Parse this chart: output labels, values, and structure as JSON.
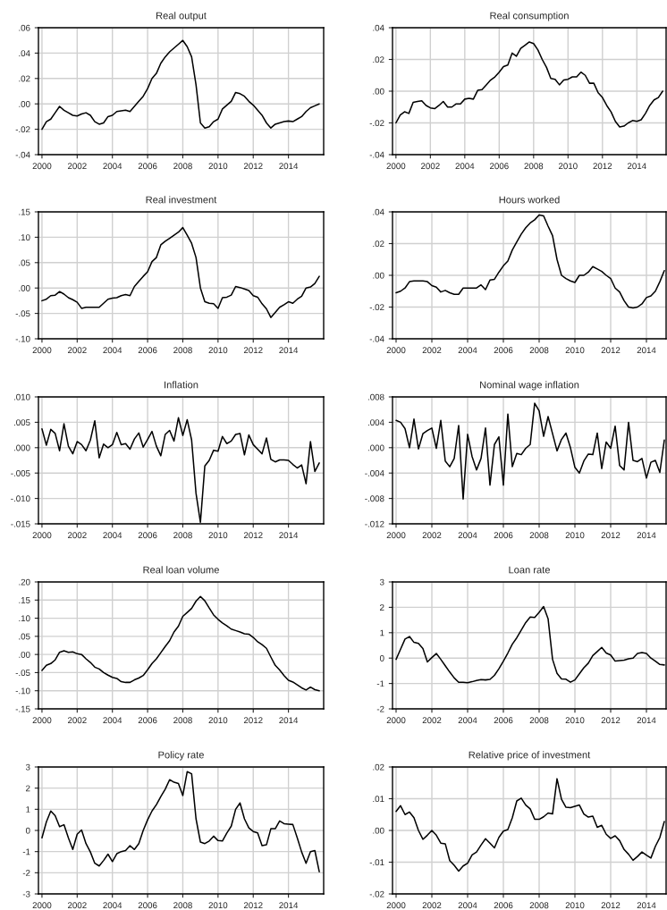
{
  "chart_data": [
    {
      "type": "line",
      "title": "Real output",
      "grid": true,
      "xlim": [
        1999.8,
        2016
      ],
      "xticks": [
        2000,
        2002,
        2004,
        2006,
        2008,
        2010,
        2012,
        2014
      ],
      "ylim": [
        -0.04,
        0.06
      ],
      "yticks": [
        {
          "value": -0.04,
          "label": "-.04"
        },
        {
          "value": -0.02,
          "label": "-.02"
        },
        {
          "value": 0,
          "label": ".00"
        },
        {
          "value": 0.02,
          "label": ".02"
        },
        {
          "value": 0.04,
          "label": ".04"
        },
        {
          "value": 0.06,
          "label": ".06"
        }
      ],
      "x": [
        2000,
        2000.25,
        2000.5,
        2000.75,
        2001,
        2001.25,
        2001.5,
        2001.75,
        2002,
        2002.25,
        2002.5,
        2002.75,
        2003,
        2003.25,
        2003.5,
        2003.75,
        2004,
        2004.25,
        2004.5,
        2004.75,
        2005,
        2005.25,
        2005.5,
        2005.75,
        2006,
        2006.25,
        2006.5,
        2006.75,
        2007,
        2007.25,
        2007.5,
        2007.75,
        2008,
        2008.25,
        2008.5,
        2008.75,
        2009,
        2009.25,
        2009.5,
        2009.75,
        2010,
        2010.25,
        2010.5,
        2010.75,
        2011,
        2011.25,
        2011.5,
        2011.75,
        2012,
        2012.25,
        2012.5,
        2012.75,
        2013,
        2013.25,
        2013.5,
        2013.75,
        2014,
        2014.25,
        2014.5,
        2014.75,
        2015,
        2015.25,
        2015.5,
        2015.75
      ],
      "series": [
        {
          "color": "#000000",
          "values": [
            -0.02,
            -0.014,
            -0.012,
            -0.007,
            -0.002,
            -0.005,
            -0.007,
            -0.009,
            -0.0095,
            -0.008,
            -0.007,
            -0.009,
            -0.014,
            -0.016,
            -0.015,
            -0.01,
            -0.009,
            -0.006,
            -0.0055,
            -0.005,
            -0.006,
            -0.002,
            0.002,
            0.006,
            0.012,
            0.02,
            0.024,
            0.032,
            0.037,
            0.041,
            0.044,
            0.047,
            0.05,
            0.045,
            0.037,
            0.015,
            -0.015,
            -0.019,
            -0.018,
            -0.014,
            -0.012,
            -0.004,
            -0.001,
            0.002,
            0.009,
            0.008,
            0.006,
            0.002,
            -0.001,
            -0.005,
            -0.009,
            -0.015,
            -0.019,
            -0.016,
            -0.015,
            -0.014,
            -0.0135,
            -0.014,
            -0.012,
            -0.01,
            -0.006,
            -0.003,
            -0.0015,
            0.0
          ]
        }
      ]
    },
    {
      "type": "line",
      "title": "Real consumption",
      "grid": true,
      "xlim": [
        1999.8,
        2015.7
      ],
      "xticks": [
        2000,
        2002,
        2004,
        2006,
        2008,
        2010,
        2012,
        2014
      ],
      "ylim": [
        -0.04,
        0.04
      ],
      "yticks": [
        {
          "value": -0.04,
          "label": "-.04"
        },
        {
          "value": -0.02,
          "label": "-.02"
        },
        {
          "value": 0,
          "label": ".00"
        },
        {
          "value": 0.02,
          "label": ".02"
        },
        {
          "value": 0.04,
          "label": ".04"
        }
      ],
      "x": [
        2000,
        2000.25,
        2000.5,
        2000.75,
        2001,
        2001.25,
        2001.5,
        2001.75,
        2002,
        2002.25,
        2002.5,
        2002.75,
        2003,
        2003.25,
        2003.5,
        2003.75,
        2004,
        2004.25,
        2004.5,
        2004.75,
        2005,
        2005.25,
        2005.5,
        2005.75,
        2006,
        2006.25,
        2006.5,
        2006.75,
        2007,
        2007.25,
        2007.5,
        2007.75,
        2008,
        2008.25,
        2008.5,
        2008.75,
        2009,
        2009.25,
        2009.5,
        2009.75,
        2010,
        2010.25,
        2010.5,
        2010.75,
        2011,
        2011.25,
        2011.5,
        2011.75,
        2012,
        2012.25,
        2012.5,
        2012.75,
        2013,
        2013.25,
        2013.5,
        2013.75,
        2014,
        2014.25,
        2014.5,
        2014.75,
        2015,
        2015.25,
        2015.5
      ],
      "series": [
        {
          "color": "#000000",
          "values": [
            -0.02,
            -0.015,
            -0.013,
            -0.014,
            -0.007,
            -0.0065,
            -0.006,
            -0.009,
            -0.0105,
            -0.011,
            -0.009,
            -0.0065,
            -0.01,
            -0.01,
            -0.008,
            -0.008,
            -0.005,
            -0.0045,
            -0.005,
            0.0005,
            0.001,
            0.004,
            0.007,
            0.009,
            0.012,
            0.0155,
            0.0165,
            0.024,
            0.022,
            0.027,
            0.029,
            0.031,
            0.03,
            0.026,
            0.02,
            0.015,
            0.008,
            0.0075,
            0.004,
            0.007,
            0.0075,
            0.009,
            0.009,
            0.012,
            0.01,
            0.005,
            0.005,
            -0.001,
            -0.004,
            -0.009,
            -0.013,
            -0.019,
            -0.0225,
            -0.022,
            -0.02,
            -0.0185,
            -0.019,
            -0.018,
            -0.014,
            -0.009,
            -0.0055,
            -0.004,
            0.0
          ]
        }
      ]
    },
    {
      "type": "line",
      "title": "Real investment",
      "grid": true,
      "xlim": [
        1999.8,
        2016
      ],
      "xticks": [
        2000,
        2002,
        2004,
        2006,
        2008,
        2010,
        2012,
        2014
      ],
      "ylim": [
        -0.1,
        0.15
      ],
      "yticks": [
        {
          "value": -0.1,
          "label": "-.10"
        },
        {
          "value": -0.05,
          "label": "-.05"
        },
        {
          "value": 0,
          "label": ".00"
        },
        {
          "value": 0.05,
          "label": ".05"
        },
        {
          "value": 0.1,
          "label": ".10"
        },
        {
          "value": 0.15,
          "label": ".15"
        }
      ],
      "x": [
        2000,
        2000.25,
        2000.5,
        2000.75,
        2001,
        2001.25,
        2001.5,
        2001.75,
        2002,
        2002.25,
        2002.5,
        2002.75,
        2003,
        2003.25,
        2003.5,
        2003.75,
        2004,
        2004.25,
        2004.5,
        2004.75,
        2005,
        2005.25,
        2005.5,
        2005.75,
        2006,
        2006.25,
        2006.5,
        2006.75,
        2007,
        2007.25,
        2007.5,
        2007.75,
        2008,
        2008.25,
        2008.5,
        2008.75,
        2009,
        2009.25,
        2009.5,
        2009.75,
        2010,
        2010.25,
        2010.5,
        2010.75,
        2011,
        2011.25,
        2011.5,
        2011.75,
        2012,
        2012.25,
        2012.5,
        2012.75,
        2013,
        2013.25,
        2013.5,
        2013.75,
        2014,
        2014.25,
        2014.5,
        2014.75,
        2015,
        2015.25,
        2015.5,
        2015.75
      ],
      "series": [
        {
          "color": "#000000",
          "values": [
            -0.025,
            -0.022,
            -0.015,
            -0.014,
            -0.007,
            -0.012,
            -0.019,
            -0.023,
            -0.028,
            -0.04,
            -0.038,
            -0.038,
            -0.038,
            -0.038,
            -0.03,
            -0.022,
            -0.02,
            -0.019,
            -0.015,
            -0.013,
            -0.015,
            0.003,
            0.013,
            0.023,
            0.032,
            0.052,
            0.06,
            0.085,
            0.092,
            0.098,
            0.104,
            0.11,
            0.119,
            0.104,
            0.088,
            0.06,
            0.0,
            -0.027,
            -0.03,
            -0.031,
            -0.04,
            -0.019,
            -0.018,
            -0.014,
            0.003,
            0.001,
            -0.002,
            -0.005,
            -0.015,
            -0.018,
            -0.031,
            -0.041,
            -0.058,
            -0.048,
            -0.038,
            -0.033,
            -0.027,
            -0.03,
            -0.022,
            -0.016,
            0.0,
            0.002,
            0.009,
            0.023
          ]
        }
      ]
    },
    {
      "type": "line",
      "title": "Hours worked",
      "grid": true,
      "xlim": [
        1999.8,
        2015.1
      ],
      "xticks": [
        2000,
        2002,
        2004,
        2006,
        2008,
        2010,
        2012,
        2014
      ],
      "ylim": [
        -0.04,
        0.04
      ],
      "yticks": [
        {
          "value": -0.04,
          "label": "-.04"
        },
        {
          "value": -0.02,
          "label": "-.02"
        },
        {
          "value": 0,
          "label": ".00"
        },
        {
          "value": 0.02,
          "label": ".02"
        },
        {
          "value": 0.04,
          "label": ".04"
        }
      ],
      "x": [
        2000,
        2000.25,
        2000.5,
        2000.75,
        2001,
        2001.25,
        2001.5,
        2001.75,
        2002,
        2002.25,
        2002.5,
        2002.75,
        2003,
        2003.25,
        2003.5,
        2003.75,
        2004,
        2004.25,
        2004.5,
        2004.75,
        2005,
        2005.25,
        2005.5,
        2005.75,
        2006,
        2006.25,
        2006.5,
        2006.75,
        2007,
        2007.25,
        2007.5,
        2007.75,
        2008,
        2008.25,
        2008.5,
        2008.75,
        2009,
        2009.25,
        2009.5,
        2009.75,
        2010,
        2010.25,
        2010.5,
        2010.75,
        2011,
        2011.25,
        2011.5,
        2011.75,
        2012,
        2012.25,
        2012.5,
        2012.75,
        2013,
        2013.25,
        2013.5,
        2013.75,
        2014,
        2014.25,
        2014.5,
        2014.75,
        2015
      ],
      "series": [
        {
          "color": "#000000",
          "values": [
            -0.011,
            -0.01,
            -0.008,
            -0.004,
            -0.0035,
            -0.0035,
            -0.0035,
            -0.004,
            -0.0065,
            -0.0075,
            -0.0105,
            -0.0095,
            -0.011,
            -0.012,
            -0.012,
            -0.008,
            -0.008,
            -0.008,
            -0.008,
            -0.006,
            -0.009,
            -0.003,
            -0.0025,
            0.002,
            0.006,
            0.009,
            0.016,
            0.021,
            0.026,
            0.03,
            0.033,
            0.035,
            0.038,
            0.0375,
            0.031,
            0.025,
            0.01,
            0.0,
            -0.002,
            -0.0035,
            -0.0045,
            0.0,
            0.0,
            0.002,
            0.0055,
            0.004,
            0.0025,
            0.0,
            -0.002,
            -0.008,
            -0.0105,
            -0.016,
            -0.02,
            -0.0205,
            -0.02,
            -0.018,
            -0.014,
            -0.013,
            -0.01,
            -0.004,
            0.003
          ]
        }
      ]
    },
    {
      "type": "line",
      "title": "Inflation",
      "grid": true,
      "xlim": [
        1999.8,
        2016
      ],
      "xticks": [
        2000,
        2002,
        2004,
        2006,
        2008,
        2010,
        2012,
        2014
      ],
      "ylim": [
        -0.015,
        0.01
      ],
      "yticks": [
        {
          "value": -0.015,
          "label": "-.015"
        },
        {
          "value": -0.01,
          "label": "-.010"
        },
        {
          "value": -0.005,
          "label": "-.005"
        },
        {
          "value": 0,
          "label": ".000"
        },
        {
          "value": 0.005,
          "label": ".005"
        },
        {
          "value": 0.01,
          "label": ".010"
        }
      ],
      "x": [
        2000,
        2000.25,
        2000.5,
        2000.75,
        2001,
        2001.25,
        2001.5,
        2001.75,
        2002,
        2002.25,
        2002.5,
        2002.75,
        2003,
        2003.25,
        2003.5,
        2003.75,
        2004,
        2004.25,
        2004.5,
        2004.75,
        2005,
        2005.25,
        2005.5,
        2005.75,
        2006,
        2006.25,
        2006.5,
        2006.75,
        2007,
        2007.25,
        2007.5,
        2007.75,
        2008,
        2008.25,
        2008.5,
        2008.75,
        2009,
        2009.25,
        2009.5,
        2009.75,
        2010,
        2010.25,
        2010.5,
        2010.75,
        2011,
        2011.25,
        2011.5,
        2011.75,
        2012,
        2012.25,
        2012.5,
        2012.75,
        2013,
        2013.25,
        2013.5,
        2013.75,
        2014,
        2014.25,
        2014.5,
        2014.75,
        2015,
        2015.25,
        2015.5,
        2015.75
      ],
      "series": [
        {
          "color": "#000000",
          "values": [
            0.0037,
            0.0005,
            0.0036,
            0.0028,
            -0.0006,
            0.0047,
            0.0003,
            -0.0012,
            0.0012,
            0.0006,
            -0.0006,
            0.0015,
            0.0053,
            -0.002,
            0.0007,
            0.0,
            0.0006,
            0.003,
            0.0006,
            0.0008,
            -0.0003,
            0.0017,
            0.0029,
            0.0001,
            0.0016,
            0.0032,
            0.0003,
            -0.0016,
            0.0026,
            0.0034,
            0.0013,
            0.0059,
            0.0024,
            0.0055,
            0.0015,
            -0.009,
            -0.0147,
            -0.0036,
            -0.0025,
            -0.0005,
            -0.0007,
            0.0022,
            0.0008,
            0.0013,
            0.0026,
            0.0028,
            -0.0014,
            0.0025,
            0.0006,
            -0.0003,
            -0.0012,
            0.0019,
            -0.0023,
            -0.0028,
            -0.0024,
            -0.0024,
            -0.0025,
            -0.0033,
            -0.004,
            -0.0034,
            -0.0071,
            0.0012,
            -0.0047,
            -0.003
          ]
        }
      ]
    },
    {
      "type": "line",
      "title": "Nominal wage inflation",
      "grid": true,
      "xlim": [
        1999.8,
        2015.1
      ],
      "xticks": [
        2000,
        2002,
        2004,
        2006,
        2008,
        2010,
        2012,
        2014
      ],
      "ylim": [
        -0.012,
        0.008
      ],
      "yticks": [
        {
          "value": -0.012,
          "label": "-.012"
        },
        {
          "value": -0.008,
          "label": "-.008"
        },
        {
          "value": -0.004,
          "label": "-.004"
        },
        {
          "value": 0,
          "label": ".000"
        },
        {
          "value": 0.004,
          "label": ".004"
        },
        {
          "value": 0.008,
          "label": ".008"
        }
      ],
      "x": [
        2000,
        2000.25,
        2000.5,
        2000.75,
        2001,
        2001.25,
        2001.5,
        2001.75,
        2002,
        2002.25,
        2002.5,
        2002.75,
        2003,
        2003.25,
        2003.5,
        2003.75,
        2004,
        2004.25,
        2004.5,
        2004.75,
        2005,
        2005.25,
        2005.5,
        2005.75,
        2006,
        2006.25,
        2006.5,
        2006.75,
        2007,
        2007.25,
        2007.5,
        2007.75,
        2008,
        2008.25,
        2008.5,
        2008.75,
        2009,
        2009.25,
        2009.5,
        2009.75,
        2010,
        2010.25,
        2010.5,
        2010.75,
        2011,
        2011.25,
        2011.5,
        2011.75,
        2012,
        2012.25,
        2012.5,
        2012.75,
        2013,
        2013.25,
        2013.5,
        2013.75,
        2014,
        2014.25,
        2014.5,
        2014.75,
        2015
      ],
      "series": [
        {
          "color": "#000000",
          "values": [
            0.0043,
            0.004,
            0.003,
            0.0,
            0.0045,
            -0.0002,
            0.0022,
            0.0027,
            0.0031,
            -0.0001,
            0.0043,
            -0.0021,
            -0.003,
            -0.0017,
            0.0035,
            -0.0081,
            0.0021,
            -0.0014,
            -0.0035,
            -0.0017,
            0.0031,
            -0.0059,
            0.0005,
            0.0017,
            -0.0059,
            0.0053,
            -0.003,
            -0.0009,
            -0.0011,
            -0.0001,
            0.0005,
            0.007,
            0.0058,
            0.0018,
            0.0049,
            0.0022,
            -0.0005,
            0.0013,
            0.0023,
            0.0,
            -0.0031,
            -0.004,
            -0.0021,
            -0.001,
            -0.0011,
            0.0023,
            -0.0033,
            0.0009,
            -0.0001,
            0.0034,
            -0.0028,
            -0.0035,
            0.004,
            -0.002,
            -0.0022,
            -0.0017,
            -0.0048,
            -0.0023,
            -0.002,
            -0.0039,
            0.0012
          ]
        }
      ]
    },
    {
      "type": "line",
      "title": "Real loan volume",
      "grid": true,
      "xlim": [
        1999.8,
        2016
      ],
      "xticks": [
        2000,
        2002,
        2004,
        2006,
        2008,
        2010,
        2012,
        2014
      ],
      "ylim": [
        -0.15,
        0.2
      ],
      "yticks": [
        {
          "value": -0.15,
          "label": "-.15"
        },
        {
          "value": -0.1,
          "label": "-.10"
        },
        {
          "value": -0.05,
          "label": "-.05"
        },
        {
          "value": 0,
          "label": ".00"
        },
        {
          "value": 0.05,
          "label": ".05"
        },
        {
          "value": 0.1,
          "label": ".10"
        },
        {
          "value": 0.15,
          "label": ".15"
        },
        {
          "value": 0.2,
          "label": ".20"
        }
      ],
      "x": [
        2000,
        2000.25,
        2000.5,
        2000.75,
        2001,
        2001.25,
        2001.5,
        2001.75,
        2002,
        2002.25,
        2002.5,
        2002.75,
        2003,
        2003.25,
        2003.5,
        2003.75,
        2004,
        2004.25,
        2004.5,
        2004.75,
        2005,
        2005.25,
        2005.5,
        2005.75,
        2006,
        2006.25,
        2006.5,
        2006.75,
        2007,
        2007.25,
        2007.5,
        2007.75,
        2008,
        2008.25,
        2008.5,
        2008.75,
        2009,
        2009.25,
        2009.5,
        2009.75,
        2010,
        2010.25,
        2010.5,
        2010.75,
        2011,
        2011.25,
        2011.5,
        2011.75,
        2012,
        2012.25,
        2012.5,
        2012.75,
        2013,
        2013.25,
        2013.5,
        2013.75,
        2014,
        2014.25,
        2014.5,
        2014.75,
        2015,
        2015.25,
        2015.5,
        2015.75
      ],
      "series": [
        {
          "color": "#000000",
          "values": [
            -0.044,
            -0.03,
            -0.025,
            -0.015,
            0.006,
            0.01,
            0.006,
            0.007,
            0.002,
            0.0,
            -0.012,
            -0.022,
            -0.035,
            -0.04,
            -0.05,
            -0.057,
            -0.063,
            -0.066,
            -0.075,
            -0.077,
            -0.077,
            -0.07,
            -0.065,
            -0.058,
            -0.042,
            -0.025,
            -0.012,
            0.005,
            0.022,
            0.038,
            0.062,
            0.078,
            0.105,
            0.116,
            0.127,
            0.147,
            0.16,
            0.148,
            0.128,
            0.109,
            0.097,
            0.087,
            0.079,
            0.07,
            0.066,
            0.062,
            0.057,
            0.056,
            0.047,
            0.035,
            0.027,
            0.017,
            -0.007,
            -0.03,
            -0.043,
            -0.058,
            -0.071,
            -0.076,
            -0.084,
            -0.092,
            -0.098,
            -0.09,
            -0.097,
            -0.1
          ]
        }
      ]
    },
    {
      "type": "line",
      "title": "Loan rate",
      "grid": true,
      "xlim": [
        1999.8,
        2015.1
      ],
      "xticks": [
        2000,
        2002,
        2004,
        2006,
        2008,
        2010,
        2012,
        2014
      ],
      "ylim": [
        -2,
        3
      ],
      "yticks": [
        -2,
        -1,
        0,
        1,
        2,
        3
      ],
      "x": [
        2000,
        2000.25,
        2000.5,
        2000.75,
        2001,
        2001.25,
        2001.5,
        2001.75,
        2002,
        2002.25,
        2002.5,
        2002.75,
        2003,
        2003.25,
        2003.5,
        2003.75,
        2004,
        2004.25,
        2004.5,
        2004.75,
        2005,
        2005.25,
        2005.5,
        2005.75,
        2006,
        2006.25,
        2006.5,
        2006.75,
        2007,
        2007.25,
        2007.5,
        2007.75,
        2008,
        2008.25,
        2008.5,
        2008.75,
        2009,
        2009.25,
        2009.5,
        2009.75,
        2010,
        2010.25,
        2010.5,
        2010.75,
        2011,
        2011.25,
        2011.5,
        2011.75,
        2012,
        2012.25,
        2012.5,
        2012.75,
        2013,
        2013.25,
        2013.5,
        2013.75,
        2014,
        2014.25,
        2014.5,
        2014.75,
        2015
      ],
      "series": [
        {
          "color": "#000000",
          "values": [
            -0.05,
            0.35,
            0.75,
            0.85,
            0.62,
            0.58,
            0.38,
            -0.15,
            0.02,
            0.18,
            -0.05,
            -0.3,
            -0.55,
            -0.78,
            -0.95,
            -0.95,
            -0.97,
            -0.93,
            -0.88,
            -0.85,
            -0.86,
            -0.84,
            -0.68,
            -0.42,
            -0.12,
            0.2,
            0.55,
            0.8,
            1.1,
            1.4,
            1.62,
            1.6,
            1.8,
            2.03,
            1.55,
            -0.05,
            -0.6,
            -0.82,
            -0.83,
            -0.95,
            -0.86,
            -0.62,
            -0.38,
            -0.2,
            0.1,
            0.26,
            0.42,
            0.2,
            0.12,
            -0.12,
            -0.1,
            -0.08,
            -0.03,
            0.0,
            0.18,
            0.22,
            0.18,
            0.0,
            -0.12,
            -0.25,
            -0.27
          ]
        }
      ]
    },
    {
      "type": "line",
      "title": "Policy rate",
      "grid": true,
      "xlim": [
        1999.8,
        2016
      ],
      "xticks": [
        2000,
        2002,
        2004,
        2006,
        2008,
        2010,
        2012,
        2014
      ],
      "ylim": [
        -3,
        3
      ],
      "yticks": [
        -3,
        -2,
        -1,
        0,
        1,
        2,
        3
      ],
      "x": [
        2000,
        2000.25,
        2000.5,
        2000.75,
        2001,
        2001.25,
        2001.5,
        2001.75,
        2002,
        2002.25,
        2002.5,
        2002.75,
        2003,
        2003.25,
        2003.5,
        2003.75,
        2004,
        2004.25,
        2004.5,
        2004.75,
        2005,
        2005.25,
        2005.5,
        2005.75,
        2006,
        2006.25,
        2006.5,
        2006.75,
        2007,
        2007.25,
        2007.5,
        2007.75,
        2008,
        2008.25,
        2008.5,
        2008.75,
        2009,
        2009.25,
        2009.5,
        2009.75,
        2010,
        2010.25,
        2010.5,
        2010.75,
        2011,
        2011.25,
        2011.5,
        2011.75,
        2012,
        2012.25,
        2012.5,
        2012.75,
        2013,
        2013.25,
        2013.5,
        2013.75,
        2014,
        2014.25,
        2014.5,
        2014.75,
        2015,
        2015.25,
        2015.5,
        2015.75
      ],
      "series": [
        {
          "color": "#000000",
          "values": [
            -0.35,
            0.4,
            0.92,
            0.7,
            0.18,
            0.27,
            -0.35,
            -0.9,
            -0.18,
            0.02,
            -0.62,
            -1.02,
            -1.55,
            -1.68,
            -1.42,
            -1.12,
            -1.47,
            -1.1,
            -1.0,
            -0.95,
            -0.72,
            -0.9,
            -0.62,
            0.0,
            0.5,
            0.92,
            1.22,
            1.6,
            1.95,
            2.4,
            2.28,
            2.22,
            1.65,
            2.78,
            2.68,
            0.55,
            -0.55,
            -0.62,
            -0.5,
            -0.27,
            -0.48,
            -0.5,
            -0.12,
            0.2,
            1.0,
            1.3,
            0.55,
            0.12,
            -0.05,
            -0.12,
            -0.72,
            -0.68,
            0.08,
            0.08,
            0.45,
            0.32,
            0.3,
            0.28,
            -0.35,
            -1.02,
            -1.55,
            -1.0,
            -0.95,
            -1.95
          ]
        }
      ]
    },
    {
      "type": "line",
      "title": "Relative price of investment",
      "grid": true,
      "xlim": [
        1999.8,
        2015.1
      ],
      "xticks": [
        2000,
        2002,
        2004,
        2006,
        2008,
        2010,
        2012,
        2014
      ],
      "ylim": [
        -0.02,
        0.02
      ],
      "yticks": [
        {
          "value": -0.02,
          "label": "-.02"
        },
        {
          "value": -0.01,
          "label": "-.01"
        },
        {
          "value": 0,
          "label": ".00"
        },
        {
          "value": 0.01,
          "label": ".01"
        },
        {
          "value": 0.02,
          "label": ".02"
        }
      ],
      "x": [
        2000,
        2000.25,
        2000.5,
        2000.75,
        2001,
        2001.25,
        2001.5,
        2001.75,
        2002,
        2002.25,
        2002.5,
        2002.75,
        2003,
        2003.25,
        2003.5,
        2003.75,
        2004,
        2004.25,
        2004.5,
        2004.75,
        2005,
        2005.25,
        2005.5,
        2005.75,
        2006,
        2006.25,
        2006.5,
        2006.75,
        2007,
        2007.25,
        2007.5,
        2007.75,
        2008,
        2008.25,
        2008.5,
        2008.75,
        2009,
        2009.25,
        2009.5,
        2009.75,
        2010,
        2010.25,
        2010.5,
        2010.75,
        2011,
        2011.25,
        2011.5,
        2011.75,
        2012,
        2012.25,
        2012.5,
        2012.75,
        2013,
        2013.25,
        2013.5,
        2013.75,
        2014,
        2014.25,
        2014.5,
        2014.75,
        2015
      ],
      "series": [
        {
          "color": "#000000",
          "values": [
            0.006,
            0.0078,
            0.005,
            0.0058,
            0.004,
            0.0,
            -0.0028,
            -0.0015,
            0.0,
            -0.0015,
            -0.004,
            -0.0042,
            -0.0095,
            -0.011,
            -0.0128,
            -0.0112,
            -0.0103,
            -0.0077,
            -0.0068,
            -0.0046,
            -0.0026,
            -0.004,
            -0.0055,
            -0.0022,
            -0.0002,
            0.0003,
            0.004,
            0.0093,
            0.0102,
            0.008,
            0.0068,
            0.0035,
            0.0035,
            0.0043,
            0.0055,
            0.0052,
            0.0163,
            0.0098,
            0.0073,
            0.0072,
            0.0076,
            0.008,
            0.0052,
            0.0042,
            0.0045,
            0.001,
            0.0016,
            -0.0012,
            -0.0025,
            -0.0017,
            -0.0032,
            -0.006,
            -0.0075,
            -0.0094,
            -0.0082,
            -0.0068,
            -0.0078,
            -0.0087,
            -0.005,
            -0.0022,
            0.0028
          ]
        }
      ]
    }
  ]
}
